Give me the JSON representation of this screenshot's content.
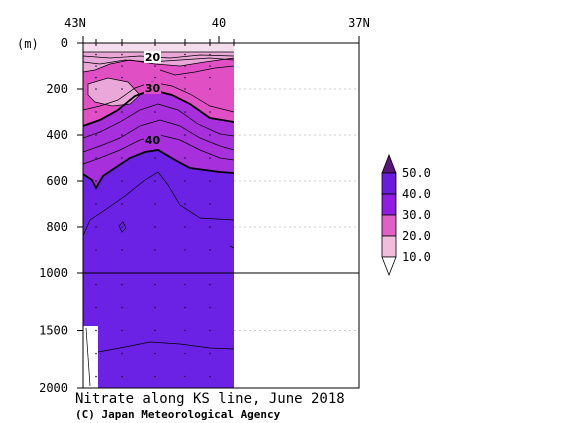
{
  "chart_data": {
    "type": "heatmap",
    "title": "Nitrate along KS line, June 2018",
    "credit": "(C) Japan Meteorological Agency",
    "ylabel": "(m)",
    "x_tick_labels": [
      "43N",
      "40",
      "37N"
    ],
    "y_ticks_upper": [
      0,
      200,
      400,
      600,
      800,
      1000
    ],
    "y_ticks_lower": [
      1500,
      2000
    ],
    "ylim": [
      0,
      2000
    ],
    "y_break": 1000,
    "colorbar": {
      "levels": [
        "50.0",
        "40.0",
        "30.0",
        "20.0",
        "10.0"
      ],
      "colors": [
        "#5a157a",
        "#6a1bdc",
        "#8f1ce0",
        "#e060c8",
        "#f0bedc"
      ]
    },
    "contour_labels": [
      "20",
      "30",
      "40"
    ],
    "colors": {
      "low": "#f4dcec",
      "band_10_20": "#eaa8d8",
      "band_20_30": "#e050c4",
      "band_30_40": "#a830dc",
      "band_40_50": "#6b22e4",
      "mask": "#ffffff"
    }
  }
}
